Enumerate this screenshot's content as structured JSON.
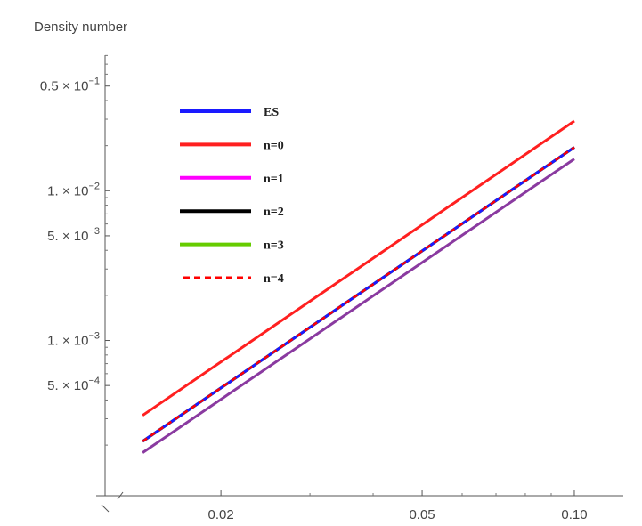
{
  "chart_data": {
    "type": "line",
    "title": "",
    "ylabel": "Density number",
    "xlabel": "",
    "x_scale": "log",
    "y_scale": "log",
    "xlim": [
      0.0118,
      0.125
    ],
    "ylim": [
      9.18e-05,
      0.0804
    ],
    "grid": false,
    "legend_position": "top-left",
    "x_ticks": [
      {
        "value": 0.02,
        "label": "0.02"
      },
      {
        "value": 0.05,
        "label": "0.05"
      },
      {
        "value": 0.1,
        "label": "0.10"
      }
    ],
    "x_minor_ticks": [
      0.03,
      0.04,
      0.06,
      0.07,
      0.08,
      0.09
    ],
    "y_ticks": [
      {
        "value": 0.0005,
        "label": "5. × 10",
        "exp": "−4"
      },
      {
        "value": 0.001,
        "label": "1. × 10",
        "exp": "−3"
      },
      {
        "value": 0.005,
        "label": "5. × 10",
        "exp": "−3"
      },
      {
        "value": 0.01,
        "label": "1. × 10",
        "exp": "−2"
      },
      {
        "value": 0.05,
        "label": "0.5 × 10",
        "exp": "−1"
      }
    ],
    "x": [
      0.014,
      0.1
    ],
    "series": [
      {
        "name": "ES",
        "color": "#1a1aff",
        "dash": false,
        "values": [
          0.000212,
          0.0195
        ]
      },
      {
        "name": "n=0",
        "color": "#ff2020",
        "dash": false,
        "values": [
          0.000316,
          0.0292
        ]
      },
      {
        "name": "n=1",
        "color": "#ff00ff",
        "dash": false,
        "values": [
          0.000178,
          0.0163
        ]
      },
      {
        "name": "n=2",
        "color": "#000000",
        "dash": false,
        "values": [
          0.000212,
          0.0195
        ]
      },
      {
        "name": "n=3",
        "color": "#66cc00",
        "dash": false,
        "values": [
          0.000212,
          0.0195
        ]
      },
      {
        "name": "n=4",
        "color": "#ff0000",
        "dash": true,
        "values": [
          0.000212,
          0.0195
        ]
      }
    ],
    "overlap_series": {
      "color": "#8a3aa0",
      "values": [
        0.000178,
        0.0163
      ]
    }
  }
}
